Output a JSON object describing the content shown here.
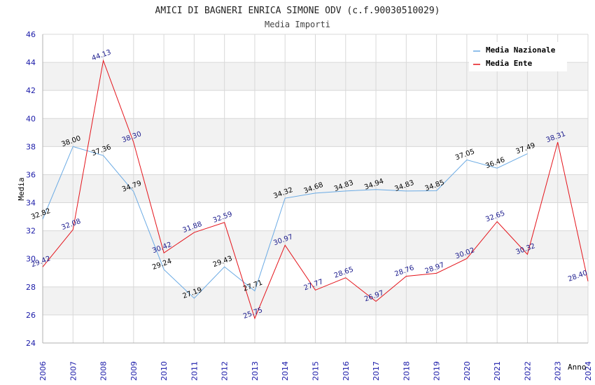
{
  "header": {
    "title": "AMICI DI BAGNERI ENRICA SIMONE ODV (c.f.90030510029)",
    "subtitle": "Media Importi"
  },
  "colors": {
    "nazionale": "#6aaae4",
    "ente": "#e4141b",
    "band": "#f2f2f2",
    "grid": "#d8d8d8"
  },
  "chart_data": {
    "type": "line",
    "title": "AMICI DI BAGNERI ENRICA SIMONE ODV (c.f.90030510029)",
    "subtitle": "Media Importi",
    "xlabel": "Anno",
    "ylabel": "Media",
    "ylim": [
      24,
      46
    ],
    "yticks": [
      24,
      26,
      28,
      30,
      32,
      34,
      36,
      38,
      40,
      42,
      44,
      46
    ],
    "x": [
      "2006",
      "2007",
      "2008",
      "2009",
      "2010",
      "2011",
      "2012",
      "2013",
      "2014",
      "2015",
      "2016",
      "2017",
      "2018",
      "2019",
      "2020",
      "2021",
      "2022",
      "2023",
      "2024"
    ],
    "legend_position": "top-right",
    "grid": true,
    "series": [
      {
        "name": "Media Nazionale",
        "values": [
          32.82,
          38.0,
          37.36,
          34.79,
          29.24,
          27.19,
          29.43,
          27.71,
          34.32,
          34.68,
          34.83,
          34.94,
          34.83,
          34.85,
          37.05,
          36.46,
          37.49,
          null,
          null
        ],
        "labels": [
          "32.82",
          "38.00",
          "37.36",
          "34.79",
          "29.24",
          "27.19",
          "29.43",
          "27.71",
          "34.32",
          "34.68",
          "34.83",
          "34.94",
          "34.83",
          "34.85",
          "37.05",
          "36.46",
          "37.49",
          null,
          null
        ]
      },
      {
        "name": "Media Ente",
        "values": [
          29.42,
          32.08,
          44.13,
          38.3,
          30.42,
          31.88,
          32.59,
          25.75,
          30.97,
          27.77,
          28.65,
          26.97,
          28.76,
          28.97,
          30.02,
          32.65,
          30.32,
          38.31,
          28.4
        ],
        "labels": [
          "29.42",
          "32.08",
          "44.13",
          "38.30",
          "30.42",
          "31.88",
          "32.59",
          "25.75",
          "30.97",
          "27.77",
          "28.65",
          "26.97",
          "28.76",
          "28.97",
          "30.02",
          "32.65",
          "30.32",
          "38.31",
          "28.40"
        ]
      }
    ]
  }
}
